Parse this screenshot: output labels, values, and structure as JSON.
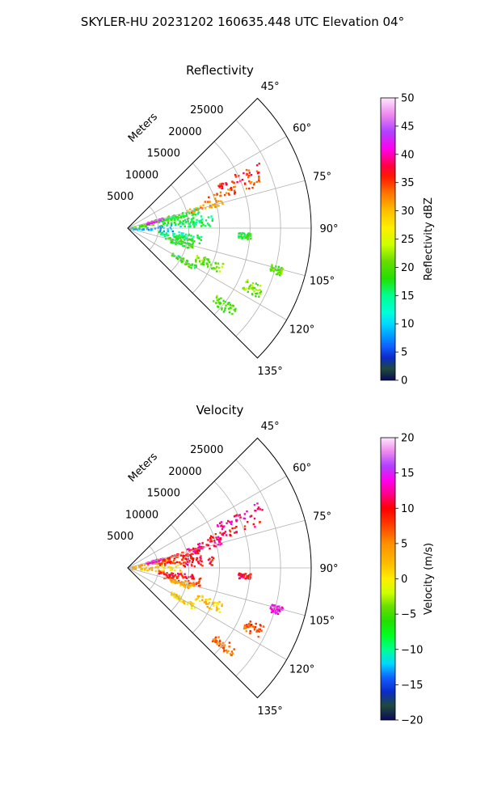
{
  "figure": {
    "suptitle": "SKYLER-HU  20231202  160635.448 UTC Elevation 04°"
  },
  "chart_data": [
    {
      "type": "heatmap",
      "projection": "polar-sector",
      "title": "Reflectivity",
      "radial_axis_label": "Meters",
      "radial_ticks": [
        "5000",
        "10000",
        "15000",
        "20000",
        "25000"
      ],
      "radial_tick_values": [
        5000,
        10000,
        15000,
        20000,
        25000
      ],
      "radial_max": 30000,
      "angle_ticks": [
        "45°",
        "60°",
        "75°",
        "90°",
        "105°",
        "120°",
        "135°"
      ],
      "angle_tick_values": [
        45,
        60,
        75,
        90,
        105,
        120,
        135
      ],
      "angle_range": [
        45,
        135
      ],
      "grid": true,
      "colorbar": {
        "label": "Reflectivity dBZ",
        "range": [
          0,
          50
        ],
        "ticks": [
          "0",
          "5",
          "10",
          "15",
          "20",
          "25",
          "30",
          "35",
          "40",
          "45",
          "50"
        ],
        "tick_values": [
          0,
          5,
          10,
          15,
          20,
          25,
          30,
          35,
          40,
          45,
          50
        ],
        "colormap": "pyart_NWSRef",
        "stops": [
          {
            "v": 0,
            "c": "#0a0a5a"
          },
          {
            "v": 2,
            "c": "#1f4a3a"
          },
          {
            "v": 4,
            "c": "#0b2bc8"
          },
          {
            "v": 6,
            "c": "#1060ff"
          },
          {
            "v": 8,
            "c": "#00a0ff"
          },
          {
            "v": 10,
            "c": "#00d8ff"
          },
          {
            "v": 12,
            "c": "#00ffd8"
          },
          {
            "v": 15,
            "c": "#00ff90"
          },
          {
            "v": 18,
            "c": "#22e000"
          },
          {
            "v": 21,
            "c": "#66dd00"
          },
          {
            "v": 24,
            "c": "#ccff00"
          },
          {
            "v": 27,
            "c": "#ffee00"
          },
          {
            "v": 30,
            "c": "#ffc000"
          },
          {
            "v": 33,
            "c": "#ff7700"
          },
          {
            "v": 36,
            "c": "#ff1a00"
          },
          {
            "v": 38,
            "c": "#ff0044"
          },
          {
            "v": 41,
            "c": "#ff00ee"
          },
          {
            "v": 44,
            "c": "#b040ff"
          },
          {
            "v": 47,
            "c": "#ee88ee"
          },
          {
            "v": 50,
            "c": "#ffe6ff"
          }
        ]
      },
      "cells": [
        {
          "az": [
            72,
            81
          ],
          "r": [
            200,
            8000
          ],
          "v": 20
        },
        {
          "az": [
            73,
            78
          ],
          "r": [
            6000,
            12000
          ],
          "v": 18
        },
        {
          "az": [
            70,
            76
          ],
          "r": [
            10000,
            16000
          ],
          "v": 32
        },
        {
          "az": [
            68,
            72
          ],
          "r": [
            14000,
            23000
          ],
          "v": 34
        },
        {
          "az": [
            63,
            67
          ],
          "r": [
            16000,
            24000
          ],
          "v": 36
        },
        {
          "az": [
            72,
            76
          ],
          "r": [
            3000,
            6000
          ],
          "v": 42
        },
        {
          "az": [
            76,
            85
          ],
          "r": [
            5000,
            11000
          ],
          "v": 17
        },
        {
          "az": [
            80,
            88
          ],
          "r": [
            9000,
            14000
          ],
          "v": 16
        },
        {
          "az": [
            85,
            95
          ],
          "r": [
            200,
            9000
          ],
          "v": 9
        },
        {
          "az": [
            95,
            100
          ],
          "r": [
            5000,
            12000
          ],
          "v": 16
        },
        {
          "az": [
            98,
            105
          ],
          "r": [
            6000,
            12000
          ],
          "v": 18
        },
        {
          "az": [
            103,
            108
          ],
          "r": [
            7000,
            11000
          ],
          "v": 18
        },
        {
          "az": [
            110,
            116
          ],
          "r": [
            12000,
            16500
          ],
          "v": 21
        },
        {
          "az": [
            118,
            122
          ],
          "r": [
            8000,
            13000
          ],
          "v": 18
        },
        {
          "az": [
            126,
            131
          ],
          "r": [
            18000,
            22000
          ],
          "v": 20
        },
        {
          "az": [
            113,
            118
          ],
          "r": [
            21000,
            24000
          ],
          "v": 21
        },
        {
          "az": [
            104,
            107
          ],
          "r": [
            24000,
            26000
          ],
          "v": 20
        },
        {
          "az": [
            92,
            95
          ],
          "r": [
            18000,
            20000
          ],
          "v": 18
        }
      ]
    },
    {
      "type": "heatmap",
      "projection": "polar-sector",
      "title": "Velocity",
      "radial_axis_label": "Meters",
      "radial_ticks": [
        "5000",
        "10000",
        "15000",
        "20000",
        "25000"
      ],
      "radial_tick_values": [
        5000,
        10000,
        15000,
        20000,
        25000
      ],
      "radial_max": 30000,
      "angle_ticks": [
        "45°",
        "60°",
        "75°",
        "90°",
        "105°",
        "120°",
        "135°"
      ],
      "angle_tick_values": [
        45,
        60,
        75,
        90,
        105,
        120,
        135
      ],
      "angle_range": [
        45,
        135
      ],
      "grid": true,
      "colorbar": {
        "label": "Velocity (m/s)",
        "range": [
          -20,
          20
        ],
        "ticks": [
          "−20",
          "−15",
          "−10",
          "−5",
          "0",
          "5",
          "10",
          "15",
          "20"
        ],
        "tick_values": [
          -20,
          -15,
          -10,
          -5,
          0,
          5,
          10,
          15,
          20
        ],
        "colormap": "pyart_BuDRd18",
        "stops": [
          {
            "v": -20,
            "c": "#0a0a5a"
          },
          {
            "v": -18,
            "c": "#1f4a3a"
          },
          {
            "v": -16,
            "c": "#0b2bc8"
          },
          {
            "v": -14,
            "c": "#1060ff"
          },
          {
            "v": -12,
            "c": "#00d8ff"
          },
          {
            "v": -10,
            "c": "#00ff90"
          },
          {
            "v": -8,
            "c": "#00ff20"
          },
          {
            "v": -6,
            "c": "#22e000"
          },
          {
            "v": -4,
            "c": "#66dd00"
          },
          {
            "v": -2,
            "c": "#ccff00"
          },
          {
            "v": 0,
            "c": "#ffee00"
          },
          {
            "v": 2,
            "c": "#ffc000"
          },
          {
            "v": 5,
            "c": "#ff9000"
          },
          {
            "v": 8,
            "c": "#ff3300"
          },
          {
            "v": 10,
            "c": "#ff0000"
          },
          {
            "v": 12,
            "c": "#ff0088"
          },
          {
            "v": 14,
            "c": "#ff00ee"
          },
          {
            "v": 16,
            "c": "#b040ff"
          },
          {
            "v": 18,
            "c": "#ee88ee"
          },
          {
            "v": 20,
            "c": "#ffe6ff"
          }
        ]
      },
      "cells": [
        {
          "az": [
            72,
            81
          ],
          "r": [
            200,
            8000
          ],
          "v": 3
        },
        {
          "az": [
            73,
            78
          ],
          "r": [
            6000,
            12000
          ],
          "v": 9
        },
        {
          "az": [
            70,
            76
          ],
          "r": [
            10000,
            16000
          ],
          "v": 12
        },
        {
          "az": [
            68,
            72
          ],
          "r": [
            14000,
            23000
          ],
          "v": 10
        },
        {
          "az": [
            63,
            67
          ],
          "r": [
            16000,
            24000
          ],
          "v": 12
        },
        {
          "az": [
            72,
            76
          ],
          "r": [
            3000,
            6000
          ],
          "v": 14
        },
        {
          "az": [
            76,
            85
          ],
          "r": [
            5000,
            11000
          ],
          "v": 9
        },
        {
          "az": [
            80,
            88
          ],
          "r": [
            9000,
            14000
          ],
          "v": 10
        },
        {
          "az": [
            85,
            95
          ],
          "r": [
            200,
            9000
          ],
          "v": 2
        },
        {
          "az": [
            95,
            100
          ],
          "r": [
            5000,
            12000
          ],
          "v": 10
        },
        {
          "az": [
            98,
            105
          ],
          "r": [
            6000,
            12000
          ],
          "v": 8
        },
        {
          "az": [
            103,
            108
          ],
          "r": [
            7000,
            11000
          ],
          "v": 3
        },
        {
          "az": [
            110,
            116
          ],
          "r": [
            12000,
            16500
          ],
          "v": 2
        },
        {
          "az": [
            118,
            122
          ],
          "r": [
            8000,
            13000
          ],
          "v": 1
        },
        {
          "az": [
            126,
            131
          ],
          "r": [
            18000,
            22000
          ],
          "v": 6
        },
        {
          "az": [
            113,
            118
          ],
          "r": [
            21000,
            24000
          ],
          "v": 7
        },
        {
          "az": [
            104,
            107
          ],
          "r": [
            24000,
            26000
          ],
          "v": 14
        },
        {
          "az": [
            92,
            95
          ],
          "r": [
            18000,
            20000
          ],
          "v": 10
        }
      ]
    }
  ]
}
